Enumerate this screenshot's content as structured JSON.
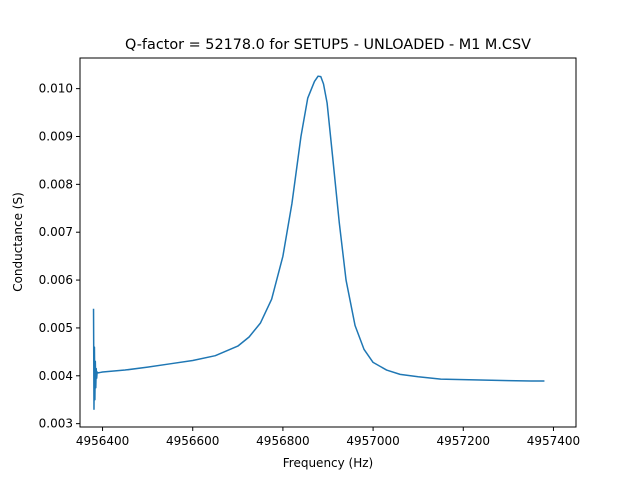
{
  "chart_data": {
    "type": "line",
    "title": "Q-factor = 52178.0 for SETUP5 - UNLOADED - M1 M.CSV",
    "xlabel": "Frequency (Hz)",
    "ylabel": "Conductance (S)",
    "xlim": [
      4956350,
      4957450
    ],
    "ylim": [
      0.00293,
      0.01064
    ],
    "xticks": [
      4956400,
      4956600,
      4956800,
      4957000,
      4957200,
      4957400
    ],
    "yticks": [
      0.003,
      0.004,
      0.005,
      0.006,
      0.007,
      0.008,
      0.009,
      0.01
    ],
    "xtick_labels": [
      "4956400",
      "4956600",
      "4956800",
      "4957000",
      "4957200",
      "4957400"
    ],
    "ytick_labels": [
      "0.003",
      "0.004",
      "0.005",
      "0.006",
      "0.007",
      "0.008",
      "0.009",
      "0.010"
    ],
    "grid": false,
    "legend": "none",
    "colors": {
      "line": "#1f77b4"
    },
    "series": [
      {
        "name": "",
        "x": [
          4956380,
          4956381,
          4956382,
          4956383,
          4956384,
          4956385,
          4956386,
          4956387,
          4956388,
          4956390,
          4956395,
          4956400,
          4956450,
          4956500,
          4956550,
          4956600,
          4956650,
          4956700,
          4956725,
          4956750,
          4956775,
          4956800,
          4956820,
          4956840,
          4956855,
          4956870,
          4956878,
          4956884,
          4956890,
          4956898,
          4956910,
          4956925,
          4956940,
          4956960,
          4956980,
          4957000,
          4957030,
          4957060,
          4957100,
          4957150,
          4957200,
          4957250,
          4957300,
          4957350,
          4957380
        ],
        "y": [
          0.0054,
          0.0033,
          0.0046,
          0.0035,
          0.0043,
          0.00375,
          0.00415,
          0.00395,
          0.00408,
          0.00406,
          0.00407,
          0.00408,
          0.00412,
          0.00418,
          0.00425,
          0.00432,
          0.00442,
          0.00462,
          0.00481,
          0.0051,
          0.0056,
          0.0065,
          0.0076,
          0.009,
          0.0098,
          0.01015,
          0.01026,
          0.01025,
          0.0101,
          0.0097,
          0.0086,
          0.0072,
          0.006,
          0.00505,
          0.00455,
          0.00428,
          0.00412,
          0.00403,
          0.00398,
          0.00393,
          0.00392,
          0.00391,
          0.0039,
          0.00389,
          0.00389
        ]
      }
    ]
  }
}
